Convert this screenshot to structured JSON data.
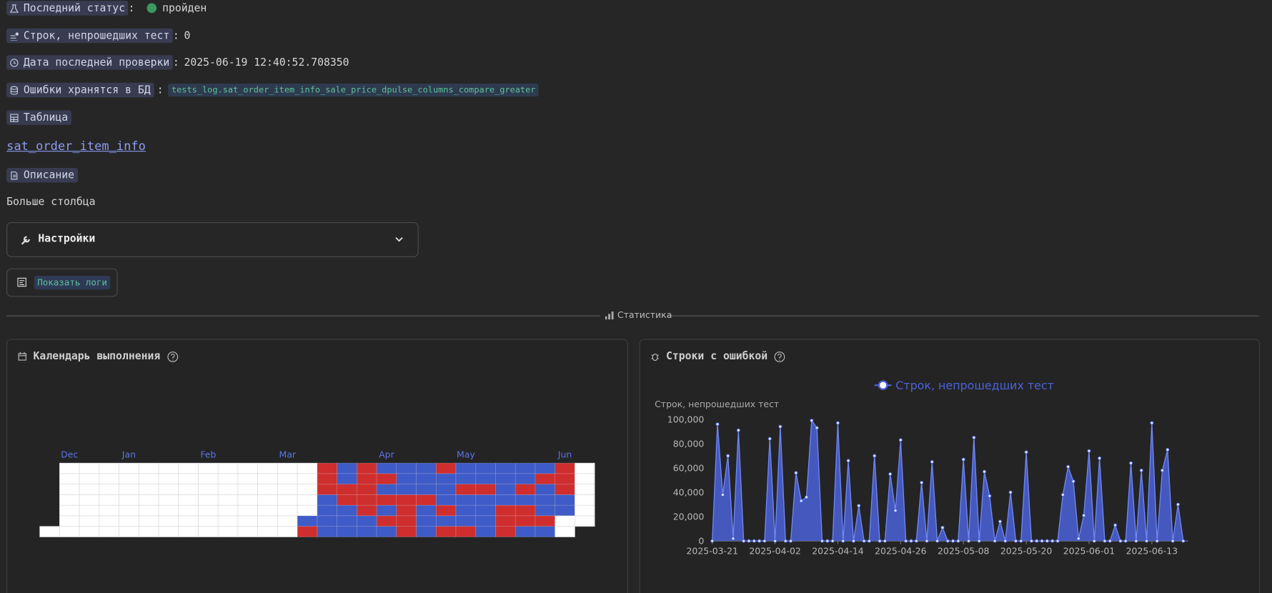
{
  "separator": ":",
  "fields": [
    {
      "label": "Последний статус",
      "value": "пройден"
    },
    {
      "label": "Строк, непрошедших тест",
      "value": 0
    },
    {
      "label": "Дата последней проверки",
      "value": "2025-06-19 12:40:52.708350"
    },
    {
      "label": "Ошибки хранятся в БД",
      "value": "tests_log.sat_order_item_info_sale_price_dpulse_columns_compare_greater"
    }
  ],
  "table": {
    "label": "Таблица",
    "link": "sat_order_item_info"
  },
  "description": {
    "label": "Описание",
    "text": "Больше столбца"
  },
  "settings": "Настройки",
  "logs_button": "Показать логи",
  "divider": "Статистика",
  "calendar": {
    "title": "Календарь выполнения",
    "colors": {
      "R": "#cf2e2e",
      "B": "#3f5bc8",
      "W": "#ffffff"
    },
    "months": [
      null,
      "Dec",
      null,
      null,
      "Jan",
      null,
      null,
      null,
      "Feb",
      null,
      null,
      null,
      "Mar",
      null,
      null,
      null,
      null,
      "Apr",
      null,
      null,
      null,
      "May",
      null,
      null,
      null,
      null,
      "Jun",
      null
    ],
    "weeks": [
      [
        null,
        null,
        null,
        null,
        null,
        null,
        "W"
      ],
      [
        "W",
        "W",
        "W",
        "W",
        "W",
        "W",
        "W"
      ],
      [
        "W",
        "W",
        "W",
        "W",
        "W",
        "W",
        "W"
      ],
      [
        "W",
        "W",
        "W",
        "W",
        "W",
        "W",
        "W"
      ],
      [
        "W",
        "W",
        "W",
        "W",
        "W",
        "W",
        "W"
      ],
      [
        "W",
        "W",
        "W",
        "W",
        "W",
        "W",
        "W"
      ],
      [
        "W",
        "W",
        "W",
        "W",
        "W",
        "W",
        "W"
      ],
      [
        "W",
        "W",
        "W",
        "W",
        "W",
        "W",
        "W"
      ],
      [
        "W",
        "W",
        "W",
        "W",
        "W",
        "W",
        "W"
      ],
      [
        "W",
        "W",
        "W",
        "W",
        "W",
        "W",
        "W"
      ],
      [
        "W",
        "W",
        "W",
        "W",
        "W",
        "W",
        "W"
      ],
      [
        "W",
        "W",
        "W",
        "W",
        "W",
        "W",
        "W"
      ],
      [
        "W",
        "W",
        "W",
        "W",
        "W",
        "W",
        "W"
      ],
      [
        "W",
        "W",
        "W",
        "W",
        "W",
        "B",
        "R"
      ],
      [
        "R",
        "R",
        "R",
        "B",
        "B",
        "B",
        "B"
      ],
      [
        "B",
        "B",
        "R",
        "R",
        "B",
        "B",
        "B"
      ],
      [
        "R",
        "R",
        "R",
        "R",
        "R",
        "B",
        "B"
      ],
      [
        "B",
        "R",
        "B",
        "R",
        "B",
        "R",
        "B"
      ],
      [
        "B",
        "B",
        "B",
        "R",
        "R",
        "R",
        "R"
      ],
      [
        "B",
        "B",
        "B",
        "R",
        "B",
        "B",
        "B"
      ],
      [
        "R",
        "B",
        "B",
        "B",
        "R",
        "B",
        "R"
      ],
      [
        "B",
        "B",
        "R",
        "B",
        "B",
        "B",
        "R"
      ],
      [
        "B",
        "B",
        "R",
        "B",
        "B",
        "B",
        "B"
      ],
      [
        "B",
        "B",
        "B",
        "B",
        "R",
        "R",
        "R"
      ],
      [
        "B",
        "B",
        "R",
        "B",
        "R",
        "R",
        "B"
      ],
      [
        "B",
        "R",
        "B",
        "B",
        "B",
        "R",
        "B"
      ],
      [
        "R",
        "R",
        "R",
        "B",
        "B",
        "W",
        "W"
      ],
      [
        "W",
        "W",
        "W",
        "W",
        "W",
        "W",
        null
      ]
    ]
  },
  "chart_data": {
    "type": "area",
    "title": "Строки с ошибкой",
    "y_label": "Строк, непрошедших тест",
    "x": [
      "2025-03-21",
      "2025-03-22",
      "2025-03-23",
      "2025-03-24",
      "2025-03-25",
      "2025-03-26",
      "2025-03-27",
      "2025-03-28",
      "2025-03-29",
      "2025-03-30",
      "2025-03-31",
      "2025-04-01",
      "2025-04-02",
      "2025-04-03",
      "2025-04-04",
      "2025-04-05",
      "2025-04-06",
      "2025-04-07",
      "2025-04-08",
      "2025-04-09",
      "2025-04-10",
      "2025-04-11",
      "2025-04-12",
      "2025-04-13",
      "2025-04-14",
      "2025-04-15",
      "2025-04-16",
      "2025-04-17",
      "2025-04-18",
      "2025-04-19",
      "2025-04-20",
      "2025-04-21",
      "2025-04-22",
      "2025-04-23",
      "2025-04-24",
      "2025-04-25",
      "2025-04-26",
      "2025-04-27",
      "2025-04-28",
      "2025-04-29",
      "2025-04-30",
      "2025-05-01",
      "2025-05-02",
      "2025-05-03",
      "2025-05-04",
      "2025-05-05",
      "2025-05-06",
      "2025-05-07",
      "2025-05-08",
      "2025-05-09",
      "2025-05-10",
      "2025-05-11",
      "2025-05-12",
      "2025-05-13",
      "2025-05-14",
      "2025-05-15",
      "2025-05-16",
      "2025-05-17",
      "2025-05-18",
      "2025-05-19",
      "2025-05-20",
      "2025-05-21",
      "2025-05-22",
      "2025-05-23",
      "2025-05-24",
      "2025-05-25",
      "2025-05-26",
      "2025-05-27",
      "2025-05-28",
      "2025-05-29",
      "2025-05-30",
      "2025-05-31",
      "2025-06-01",
      "2025-06-02",
      "2025-06-03",
      "2025-06-04",
      "2025-06-05",
      "2025-06-06",
      "2025-06-07",
      "2025-06-08",
      "2025-06-09",
      "2025-06-10",
      "2025-06-11",
      "2025-06-12",
      "2025-06-13",
      "2025-06-14",
      "2025-06-15",
      "2025-06-16",
      "2025-06-17",
      "2025-06-18",
      "2025-06-19"
    ],
    "series": [
      {
        "name": "Строк, непрошедших тест",
        "color": "#4a62d8",
        "values": [
          0,
          96000,
          38000,
          70000,
          2000,
          91000,
          0,
          0,
          0,
          0,
          0,
          84000,
          0,
          94000,
          0,
          0,
          56000,
          33000,
          36000,
          99000,
          93000,
          0,
          0,
          0,
          97000,
          0,
          66000,
          0,
          29000,
          0,
          0,
          70000,
          0,
          0,
          55000,
          25000,
          83000,
          0,
          0,
          0,
          48000,
          0,
          65000,
          0,
          11000,
          0,
          0,
          0,
          67000,
          0,
          85000,
          0,
          57000,
          37000,
          0,
          16000,
          0,
          40000,
          0,
          0,
          73000,
          0,
          0,
          0,
          0,
          0,
          0,
          38000,
          61000,
          49000,
          2000,
          21000,
          74000,
          0,
          68000,
          0,
          0,
          13000,
          0,
          0,
          64000,
          0,
          58000,
          0,
          97000,
          0,
          58000,
          75000,
          0,
          30000,
          0
        ]
      }
    ],
    "xlim": [
      "2025-03-21",
      "2025-06-19"
    ],
    "xticks": [
      "2025-03-21",
      "2025-04-02",
      "2025-04-14",
      "2025-04-26",
      "2025-05-08",
      "2025-05-20",
      "2025-06-01",
      "2025-06-13"
    ],
    "ylim": [
      0,
      100000
    ],
    "yticks": [
      0,
      {
        "value": 20000,
        "label": "20,000"
      },
      {
        "value": 40000,
        "label": "40,000"
      },
      {
        "value": 60000,
        "label": "60,000"
      },
      {
        "value": 80000,
        "label": "80,000"
      },
      {
        "value": 100000,
        "label": "100,000"
      }
    ],
    "grid": false,
    "legend": "top"
  }
}
